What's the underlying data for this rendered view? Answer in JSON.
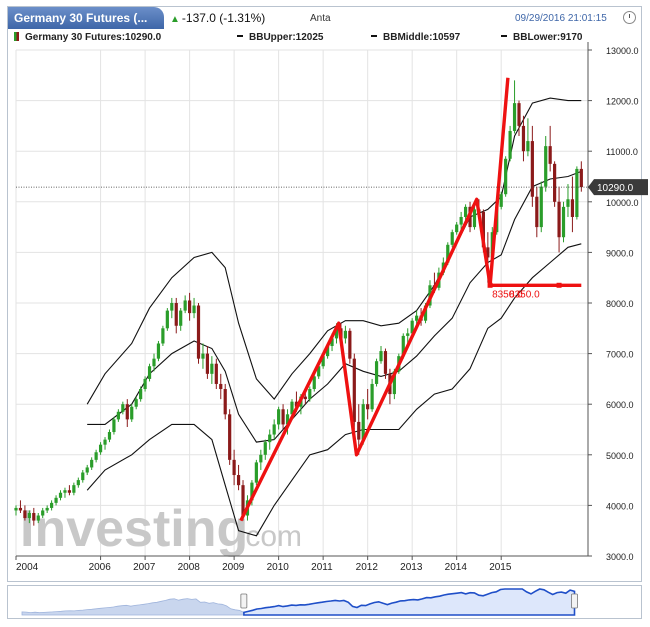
{
  "header": {
    "instrument_tab": "Germany 30 Futures (...",
    "change_text": "-137.0 (-1.31%)",
    "change_icon": "triangle-up-icon",
    "source": "Anta",
    "datetime": "09/29/2016 21:01:15",
    "clock_icon": "clock-icon"
  },
  "legend": {
    "price": "Germany 30 Futures:10290.0",
    "bb_upper": "BBUpper:12025",
    "bb_middle": "BBMiddle:10597",
    "bb_lower": "BBLower:9170"
  },
  "watermark": {
    "brand": "Investing",
    "suffix": ".com"
  },
  "price_tag": "10290.0",
  "colors": {
    "up": "#2a9d2a",
    "down": "#8b1a1a",
    "trend": "#ee1111",
    "band": "#111111",
    "header": "#3e66a8",
    "navigator": "#1f4fc8"
  },
  "chart_data": {
    "type": "candlestick",
    "x_tick_labels": [
      "2004",
      "2006",
      "2007",
      "2008",
      "2009",
      "2010",
      "2011",
      "2012",
      "2013",
      "2014",
      "2015"
    ],
    "y_tick_labels": [
      "3000.0",
      "4000.0",
      "5000.0",
      "6000.0",
      "7000.0",
      "8000.0",
      "9000.0",
      "10000.0",
      "11000.0",
      "12000.0",
      "13000.0"
    ],
    "ylim": [
      3000,
      13000
    ],
    "xlim": [
      2004.0,
      2016.85
    ],
    "last_price": 10290.0,
    "support_level": 8350.0,
    "support_labels": [
      "8350.0",
      "8350.0"
    ],
    "bb_upper": [
      [
        2005.6,
        6000
      ],
      [
        2006.0,
        6600
      ],
      [
        2006.6,
        7200
      ],
      [
        2007.0,
        7900
      ],
      [
        2007.5,
        8500
      ],
      [
        2008.0,
        8900
      ],
      [
        2008.4,
        9000
      ],
      [
        2008.7,
        8700
      ],
      [
        2009.0,
        7600
      ],
      [
        2009.4,
        6500
      ],
      [
        2009.8,
        6100
      ],
      [
        2010.2,
        6600
      ],
      [
        2010.6,
        7000
      ],
      [
        2011.0,
        7450
      ],
      [
        2011.4,
        7650
      ],
      [
        2011.8,
        7650
      ],
      [
        2012.2,
        7550
      ],
      [
        2012.6,
        7600
      ],
      [
        2013.0,
        7850
      ],
      [
        2013.4,
        8350
      ],
      [
        2013.8,
        9000
      ],
      [
        2014.2,
        9700
      ],
      [
        2014.6,
        9850
      ],
      [
        2014.9,
        10100
      ],
      [
        2015.2,
        11300
      ],
      [
        2015.6,
        11950
      ],
      [
        2016.0,
        12050
      ],
      [
        2016.4,
        12000
      ],
      [
        2016.7,
        12000
      ]
    ],
    "bb_middle": [
      [
        2005.6,
        5600
      ],
      [
        2006.0,
        5600
      ],
      [
        2006.6,
        6000
      ],
      [
        2007.0,
        6600
      ],
      [
        2007.5,
        7000
      ],
      [
        2008.0,
        7250
      ],
      [
        2008.4,
        7100
      ],
      [
        2008.7,
        6650
      ],
      [
        2009.0,
        5800
      ],
      [
        2009.4,
        5250
      ],
      [
        2009.8,
        5300
      ],
      [
        2010.2,
        5700
      ],
      [
        2010.6,
        6100
      ],
      [
        2011.0,
        6400
      ],
      [
        2011.4,
        6800
      ],
      [
        2011.8,
        6650
      ],
      [
        2012.2,
        6550
      ],
      [
        2012.6,
        6650
      ],
      [
        2013.0,
        6950
      ],
      [
        2013.4,
        7350
      ],
      [
        2013.8,
        7700
      ],
      [
        2014.2,
        8400
      ],
      [
        2014.6,
        8800
      ],
      [
        2014.9,
        8950
      ],
      [
        2015.2,
        9650
      ],
      [
        2015.6,
        10300
      ],
      [
        2016.0,
        10450
      ],
      [
        2016.4,
        10500
      ],
      [
        2016.7,
        10600
      ]
    ],
    "bb_lower": [
      [
        2005.6,
        4300
      ],
      [
        2006.0,
        4700
      ],
      [
        2006.6,
        5000
      ],
      [
        2007.0,
        5300
      ],
      [
        2007.5,
        5600
      ],
      [
        2008.0,
        5600
      ],
      [
        2008.4,
        5300
      ],
      [
        2008.7,
        4400
      ],
      [
        2009.0,
        3500
      ],
      [
        2009.4,
        3400
      ],
      [
        2009.8,
        4000
      ],
      [
        2010.2,
        4500
      ],
      [
        2010.6,
        5000
      ],
      [
        2011.0,
        5100
      ],
      [
        2011.4,
        5400
      ],
      [
        2011.8,
        5500
      ],
      [
        2012.2,
        5500
      ],
      [
        2012.6,
        5500
      ],
      [
        2013.0,
        5900
      ],
      [
        2013.4,
        6200
      ],
      [
        2013.8,
        6300
      ],
      [
        2014.2,
        6700
      ],
      [
        2014.6,
        7500
      ],
      [
        2014.9,
        7700
      ],
      [
        2015.2,
        8100
      ],
      [
        2015.6,
        8500
      ],
      [
        2016.0,
        8800
      ],
      [
        2016.4,
        9100
      ],
      [
        2016.7,
        9170
      ]
    ],
    "trend_lines": [
      [
        [
          2009.05,
          3700
        ],
        [
          2011.25,
          7600
        ],
        [
          2011.65,
          5000
        ],
        [
          2014.35,
          10050
        ],
        [
          2014.65,
          8350
        ],
        [
          2015.05,
          12450
        ]
      ],
      [
        [
          2014.65,
          8350
        ],
        [
          2016.7,
          8350
        ]
      ]
    ],
    "candles": [
      [
        2004.0,
        3900,
        4000,
        3800,
        3950
      ],
      [
        2004.1,
        3950,
        4100,
        3850,
        3900
      ],
      [
        2004.2,
        3900,
        4000,
        3700,
        3750
      ],
      [
        2004.3,
        3750,
        3900,
        3650,
        3850
      ],
      [
        2004.4,
        3850,
        3950,
        3600,
        3700
      ],
      [
        2004.5,
        3700,
        3850,
        3650,
        3800
      ],
      [
        2004.6,
        3800,
        3950,
        3750,
        3900
      ],
      [
        2004.7,
        3900,
        4000,
        3850,
        3950
      ],
      [
        2004.8,
        3950,
        4100,
        3900,
        4050
      ],
      [
        2004.9,
        4050,
        4200,
        4000,
        4150
      ],
      [
        2005.0,
        4150,
        4300,
        4100,
        4250
      ],
      [
        2005.1,
        4250,
        4350,
        4150,
        4300
      ],
      [
        2005.2,
        4300,
        4400,
        4200,
        4250
      ],
      [
        2005.3,
        4250,
        4450,
        4200,
        4400
      ],
      [
        2005.4,
        4400,
        4550,
        4350,
        4500
      ],
      [
        2005.5,
        4500,
        4700,
        4450,
        4650
      ],
      [
        2005.6,
        4650,
        4800,
        4600,
        4750
      ],
      [
        2005.7,
        4750,
        4950,
        4700,
        4900
      ],
      [
        2005.8,
        4900,
        5100,
        4850,
        5050
      ],
      [
        2005.9,
        5050,
        5250,
        5000,
        5200
      ],
      [
        2006.0,
        5200,
        5350,
        5100,
        5300
      ],
      [
        2006.1,
        5300,
        5500,
        5250,
        5450
      ],
      [
        2006.2,
        5450,
        5750,
        5400,
        5700
      ],
      [
        2006.3,
        5700,
        5900,
        5650,
        5850
      ],
      [
        2006.4,
        5850,
        6050,
        5800,
        6000
      ],
      [
        2006.5,
        6000,
        6100,
        5550,
        5700
      ],
      [
        2006.6,
        5700,
        6000,
        5650,
        5950
      ],
      [
        2006.7,
        5950,
        6150,
        5900,
        6100
      ],
      [
        2006.8,
        6100,
        6350,
        6050,
        6300
      ],
      [
        2006.9,
        6300,
        6550,
        6250,
        6500
      ],
      [
        2007.0,
        6500,
        6800,
        6450,
        6750
      ],
      [
        2007.1,
        6750,
        7000,
        6650,
        6900
      ],
      [
        2007.2,
        6900,
        7250,
        6850,
        7200
      ],
      [
        2007.3,
        7200,
        7550,
        7150,
        7500
      ],
      [
        2007.4,
        7500,
        7900,
        7450,
        7850
      ],
      [
        2007.5,
        7850,
        8100,
        7700,
        8000
      ],
      [
        2007.6,
        8000,
        8100,
        7400,
        7550
      ],
      [
        2007.7,
        7550,
        7900,
        7450,
        7850
      ],
      [
        2007.8,
        7850,
        8150,
        7800,
        8050
      ],
      [
        2007.9,
        8050,
        8200,
        7650,
        7800
      ],
      [
        2008.0,
        7800,
        8100,
        7700,
        7950
      ],
      [
        2008.1,
        7950,
        8000,
        6800,
        6900
      ],
      [
        2008.2,
        6900,
        7200,
        6700,
        7000
      ],
      [
        2008.3,
        7000,
        7150,
        6500,
        6600
      ],
      [
        2008.4,
        6600,
        6950,
        6400,
        6800
      ],
      [
        2008.5,
        6800,
        6900,
        6300,
        6400
      ],
      [
        2008.6,
        6400,
        6600,
        6100,
        6300
      ],
      [
        2008.7,
        6300,
        6400,
        5700,
        5800
      ],
      [
        2008.8,
        5800,
        5900,
        4800,
        4900
      ],
      [
        2008.9,
        4900,
        5100,
        4400,
        4600
      ],
      [
        2009.0,
        4600,
        4800,
        4300,
        4400
      ],
      [
        2009.1,
        4400,
        4500,
        3700,
        3800
      ],
      [
        2009.2,
        3800,
        4200,
        3700,
        4100
      ],
      [
        2009.3,
        4100,
        4500,
        4000,
        4450
      ],
      [
        2009.4,
        4450,
        4900,
        4400,
        4850
      ],
      [
        2009.5,
        4850,
        5100,
        4700,
        5000
      ],
      [
        2009.6,
        5000,
        5300,
        4900,
        5250
      ],
      [
        2009.7,
        5250,
        5500,
        5100,
        5400
      ],
      [
        2009.8,
        5400,
        5700,
        5300,
        5600
      ],
      [
        2009.9,
        5600,
        5950,
        5500,
        5900
      ],
      [
        2010.0,
        5900,
        6000,
        5500,
        5600
      ],
      [
        2010.1,
        5600,
        5900,
        5400,
        5800
      ],
      [
        2010.2,
        5800,
        6100,
        5750,
        6050
      ],
      [
        2010.3,
        6050,
        6250,
        5850,
        5950
      ],
      [
        2010.4,
        5950,
        6200,
        5800,
        6150
      ],
      [
        2010.5,
        6150,
        6300,
        6000,
        6100
      ],
      [
        2010.6,
        6100,
        6350,
        6050,
        6300
      ],
      [
        2010.7,
        6300,
        6600,
        6250,
        6550
      ],
      [
        2010.8,
        6550,
        6800,
        6500,
        6750
      ],
      [
        2010.9,
        6750,
        7000,
        6700,
        6950
      ],
      [
        2011.0,
        6950,
        7200,
        6900,
        7150
      ],
      [
        2011.1,
        7150,
        7400,
        7050,
        7300
      ],
      [
        2011.2,
        7300,
        7600,
        7200,
        7500
      ],
      [
        2011.3,
        7500,
        7600,
        7150,
        7300
      ],
      [
        2011.4,
        7300,
        7550,
        7200,
        7450
      ],
      [
        2011.5,
        7450,
        7500,
        6800,
        6900
      ],
      [
        2011.6,
        6900,
        7000,
        5500,
        5650
      ],
      [
        2011.7,
        5650,
        6000,
        5000,
        5300
      ],
      [
        2011.8,
        5300,
        6100,
        5200,
        6000
      ],
      [
        2011.9,
        6000,
        6300,
        5700,
        5900
      ],
      [
        2012.0,
        5900,
        6500,
        5850,
        6400
      ],
      [
        2012.1,
        6400,
        6900,
        6350,
        6850
      ],
      [
        2012.2,
        6850,
        7150,
        6800,
        7050
      ],
      [
        2012.3,
        7050,
        7100,
        6500,
        6600
      ],
      [
        2012.4,
        6600,
        6700,
        6000,
        6200
      ],
      [
        2012.5,
        6200,
        6700,
        6100,
        6650
      ],
      [
        2012.6,
        6650,
        7000,
        6600,
        6950
      ],
      [
        2012.7,
        6950,
        7400,
        6900,
        7350
      ],
      [
        2012.8,
        7350,
        7500,
        7200,
        7400
      ],
      [
        2012.9,
        7400,
        7700,
        7350,
        7650
      ],
      [
        2013.0,
        7650,
        7850,
        7550,
        7750
      ],
      [
        2013.1,
        7750,
        7900,
        7550,
        7650
      ],
      [
        2013.2,
        7650,
        8000,
        7600,
        7950
      ],
      [
        2013.3,
        7950,
        8450,
        7900,
        8350
      ],
      [
        2013.4,
        8350,
        8600,
        8200,
        8300
      ],
      [
        2013.5,
        8300,
        8700,
        8250,
        8600
      ],
      [
        2013.6,
        8600,
        8900,
        8550,
        8800
      ],
      [
        2013.7,
        8800,
        9200,
        8750,
        9150
      ],
      [
        2013.8,
        9150,
        9450,
        9100,
        9400
      ],
      [
        2013.9,
        9400,
        9600,
        9350,
        9550
      ],
      [
        2014.0,
        9550,
        9800,
        9400,
        9700
      ],
      [
        2014.1,
        9700,
        9950,
        9600,
        9900
      ],
      [
        2014.2,
        9900,
        10000,
        9400,
        9500
      ],
      [
        2014.3,
        9500,
        9900,
        9450,
        9850
      ],
      [
        2014.4,
        9850,
        10050,
        9700,
        9800
      ],
      [
        2014.5,
        9800,
        9850,
        9000,
        9100
      ],
      [
        2014.6,
        9100,
        9400,
        8400,
        8900
      ],
      [
        2014.7,
        8900,
        9500,
        8850,
        9400
      ],
      [
        2014.8,
        9400,
        9950,
        9350,
        9900
      ],
      [
        2014.9,
        9900,
        10200,
        9850,
        10150
      ],
      [
        2015.0,
        10150,
        10900,
        10100,
        10850
      ],
      [
        2015.1,
        10850,
        11500,
        10800,
        11400
      ],
      [
        2015.2,
        11400,
        12400,
        11350,
        11950
      ],
      [
        2015.3,
        11950,
        12000,
        11300,
        11500
      ],
      [
        2015.4,
        11500,
        11700,
        10800,
        11000
      ],
      [
        2015.5,
        11000,
        11650,
        10900,
        11200
      ],
      [
        2015.6,
        11200,
        11500,
        9900,
        10100
      ],
      [
        2015.7,
        10100,
        10300,
        9300,
        9500
      ],
      [
        2015.8,
        9500,
        10400,
        9400,
        10300
      ],
      [
        2015.9,
        10300,
        11300,
        10200,
        11100
      ],
      [
        2016.0,
        11100,
        11500,
        10600,
        10750
      ],
      [
        2016.1,
        10750,
        10800,
        9900,
        10000
      ],
      [
        2016.2,
        10000,
        10300,
        9000,
        9300
      ],
      [
        2016.3,
        9300,
        10000,
        9200,
        9900
      ],
      [
        2016.4,
        9900,
        10350,
        9700,
        10050
      ],
      [
        2016.5,
        10050,
        10500,
        9400,
        9700
      ],
      [
        2016.6,
        9700,
        10700,
        9650,
        10650
      ],
      [
        2016.7,
        10650,
        10800,
        10200,
        10290
      ]
    ]
  }
}
